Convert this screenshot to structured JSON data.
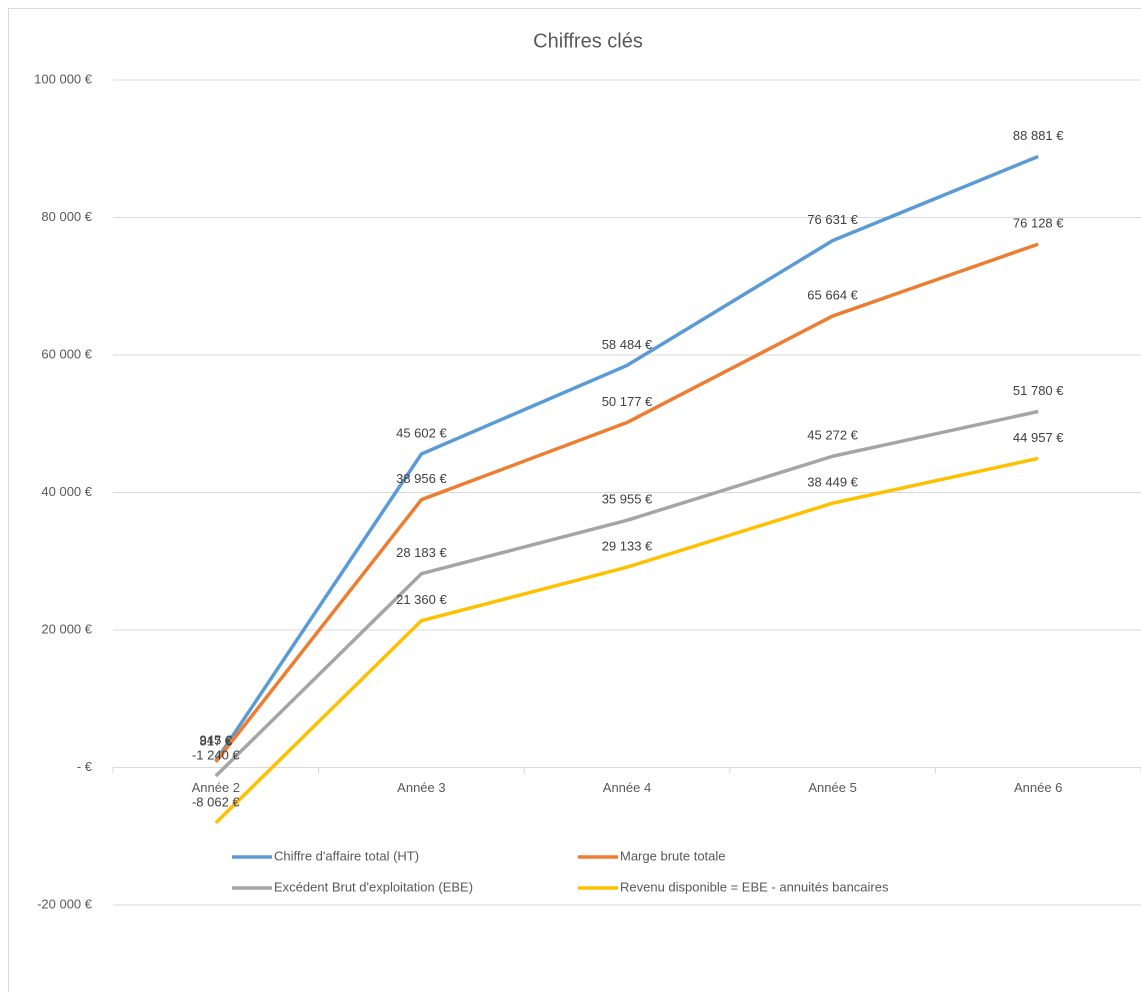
{
  "chart_data": {
    "type": "line",
    "title": "Chiffres clés",
    "categories": [
      "Année 2",
      "Année 3",
      "Année 4",
      "Année 5",
      "Année 6"
    ],
    "series": [
      {
        "name": "Chiffre d'affaire total (HT)",
        "color": "#5b9bd5",
        "values": [
          945,
          45602,
          58484,
          76631,
          88881
        ],
        "value_labels": [
          "945 €",
          "45 602 €",
          "58 484 €",
          "76 631 €",
          "88 881 €"
        ]
      },
      {
        "name": "Marge brute totale",
        "color": "#ed7d31",
        "values": [
          817,
          38956,
          50177,
          65664,
          76128
        ],
        "value_labels": [
          "817 €",
          "38 956 €",
          "50 177 €",
          "65 664 €",
          "76 128 €"
        ]
      },
      {
        "name": "Excédent Brut d'exploitation (EBE)",
        "color": "#a5a5a5",
        "values": [
          -1240,
          28183,
          35955,
          45272,
          51780
        ],
        "value_labels": [
          "-1 240 €",
          "28 183 €",
          "35 955 €",
          "45 272 €",
          "51 780 €"
        ]
      },
      {
        "name": "Revenu disponible = EBE - annuités bancaires",
        "color": "#ffc000",
        "values": [
          -8062,
          21360,
          29133,
          38449,
          44957
        ],
        "value_labels": [
          "-8 062 €",
          "21 360 €",
          "29 133 €",
          "38 449 €",
          "44 957 €"
        ]
      }
    ],
    "ylim": [
      -20000,
      100000
    ],
    "yticks": [
      {
        "value": -20000,
        "label": "-20 000 €"
      },
      {
        "value": 0,
        "label": "-   €"
      },
      {
        "value": 20000,
        "label": "20 000 €"
      },
      {
        "value": 40000,
        "label": "40 000 €"
      },
      {
        "value": 60000,
        "label": "60 000 €"
      },
      {
        "value": 80000,
        "label": "80 000 €"
      },
      {
        "value": 100000,
        "label": "100 000 €"
      }
    ],
    "grid": true
  }
}
